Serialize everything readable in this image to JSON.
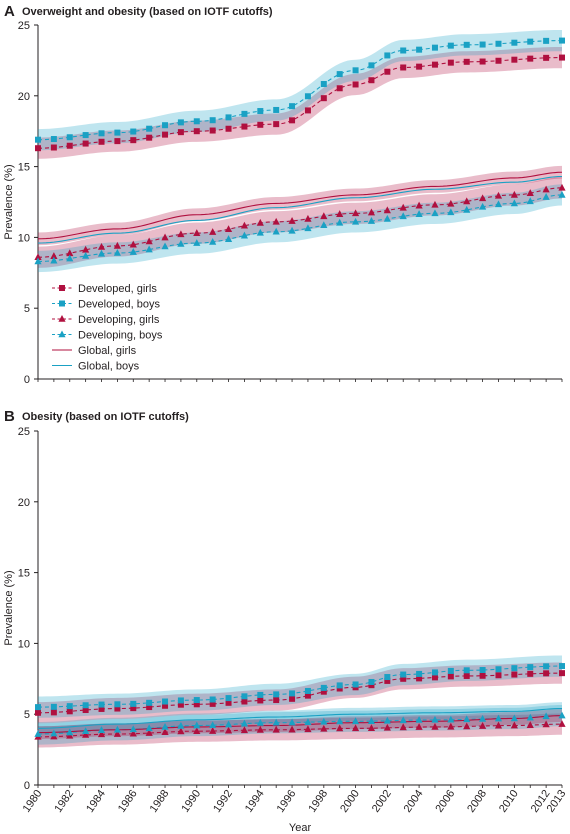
{
  "chart_data": [
    {
      "panel": "A",
      "type": "line",
      "title": "Overweight and obesity (based on IOTF cutoffs)",
      "xlabel": "",
      "ylabel": "Prevalence (%)",
      "xlim": [
        1980,
        2013
      ],
      "ylim": [
        0,
        25
      ],
      "yticks": [
        0,
        5,
        10,
        15,
        20,
        25
      ],
      "legend": "lower-left",
      "grid": false,
      "series": [
        {
          "name": "Developed, girls",
          "color": "#b0103f",
          "marker": "square",
          "dashed": true,
          "band": true,
          "x": [
            1980,
            1985,
            1990,
            1995,
            2000,
            2003,
            2007,
            2013
          ],
          "y": [
            16.3,
            16.8,
            17.5,
            18.0,
            20.8,
            22.0,
            22.4,
            22.7
          ]
        },
        {
          "name": "Developed, boys",
          "color": "#1aa1c4",
          "marker": "square",
          "dashed": true,
          "band": true,
          "x": [
            1980,
            1985,
            1990,
            1995,
            2000,
            2003,
            2007,
            2013
          ],
          "y": [
            16.9,
            17.4,
            18.2,
            19.0,
            21.8,
            23.2,
            23.6,
            23.9
          ]
        },
        {
          "name": "Developing, girls",
          "color": "#b0103f",
          "marker": "triangle",
          "dashed": true,
          "band": true,
          "x": [
            1980,
            1985,
            1990,
            1995,
            2000,
            2005,
            2010,
            2013
          ],
          "y": [
            8.6,
            9.4,
            10.3,
            11.1,
            11.7,
            12.3,
            13.0,
            13.5
          ]
        },
        {
          "name": "Developing, boys",
          "color": "#1aa1c4",
          "marker": "triangle",
          "dashed": true,
          "band": true,
          "x": [
            1980,
            1985,
            1990,
            1995,
            2000,
            2005,
            2010,
            2013
          ],
          "y": [
            8.3,
            8.9,
            9.6,
            10.4,
            11.1,
            11.7,
            12.4,
            13.0
          ]
        },
        {
          "name": "Global, girls",
          "color": "#b0103f",
          "marker": "none",
          "dashed": false,
          "band": true,
          "x": [
            1980,
            1985,
            1990,
            1995,
            2000,
            2005,
            2010,
            2013
          ],
          "y": [
            9.9,
            10.6,
            11.6,
            12.4,
            13.0,
            13.6,
            14.2,
            14.6
          ]
        },
        {
          "name": "Global, boys",
          "color": "#1aa1c4",
          "marker": "none",
          "dashed": false,
          "band": false,
          "x": [
            1980,
            1985,
            1990,
            1995,
            2000,
            2005,
            2010,
            2013
          ],
          "y": [
            9.6,
            10.3,
            11.2,
            12.1,
            12.8,
            13.4,
            13.9,
            14.3
          ]
        }
      ]
    },
    {
      "panel": "B",
      "type": "line",
      "title": "Obesity (based on IOTF cutoffs)",
      "xlabel": "Year",
      "ylabel": "Prevalence (%)",
      "xlim": [
        1980,
        2013
      ],
      "ylim": [
        0,
        25
      ],
      "yticks": [
        0,
        5,
        10,
        15,
        20,
        25
      ],
      "xticks": [
        1980,
        1982,
        1984,
        1986,
        1988,
        1990,
        1992,
        1994,
        1996,
        1998,
        2000,
        2002,
        2004,
        2006,
        2008,
        2010,
        2012,
        2013
      ],
      "legend": "none",
      "grid": false,
      "series": [
        {
          "name": "Developed, girls",
          "color": "#b0103f",
          "marker": "square",
          "dashed": true,
          "band": true,
          "x": [
            1980,
            1985,
            1990,
            1995,
            2000,
            2003,
            2007,
            2013
          ],
          "y": [
            5.1,
            5.4,
            5.7,
            6.0,
            6.9,
            7.5,
            7.7,
            7.9
          ]
        },
        {
          "name": "Developed, boys",
          "color": "#1aa1c4",
          "marker": "square",
          "dashed": true,
          "band": true,
          "x": [
            1980,
            1985,
            1990,
            1995,
            2000,
            2003,
            2007,
            2013
          ],
          "y": [
            5.5,
            5.7,
            6.0,
            6.4,
            7.1,
            7.8,
            8.1,
            8.4
          ]
        },
        {
          "name": "Developing, girls",
          "color": "#b0103f",
          "marker": "triangle",
          "dashed": true,
          "band": true,
          "x": [
            1980,
            1985,
            1990,
            1995,
            2000,
            2005,
            2010,
            2013
          ],
          "y": [
            3.4,
            3.6,
            3.8,
            3.9,
            4.0,
            4.1,
            4.2,
            4.3
          ]
        },
        {
          "name": "Developing, boys",
          "color": "#1aa1c4",
          "marker": "triangle",
          "dashed": true,
          "band": true,
          "x": [
            1980,
            1985,
            1990,
            1995,
            2000,
            2005,
            2010,
            2013
          ],
          "y": [
            3.6,
            3.9,
            4.2,
            4.4,
            4.5,
            4.6,
            4.7,
            4.9
          ]
        },
        {
          "name": "Global, girls",
          "color": "#b0103f",
          "marker": "none",
          "dashed": false,
          "band": true,
          "x": [
            1980,
            1985,
            1990,
            1995,
            2000,
            2005,
            2010,
            2013
          ],
          "y": [
            3.7,
            3.9,
            4.1,
            4.2,
            4.4,
            4.5,
            4.7,
            4.9
          ]
        },
        {
          "name": "Global, boys",
          "color": "#1aa1c4",
          "marker": "none",
          "dashed": false,
          "band": true,
          "x": [
            1980,
            1985,
            1990,
            1995,
            2000,
            2005,
            2010,
            2013
          ],
          "y": [
            4.0,
            4.3,
            4.6,
            4.8,
            5.0,
            5.1,
            5.2,
            5.4
          ]
        }
      ]
    }
  ]
}
